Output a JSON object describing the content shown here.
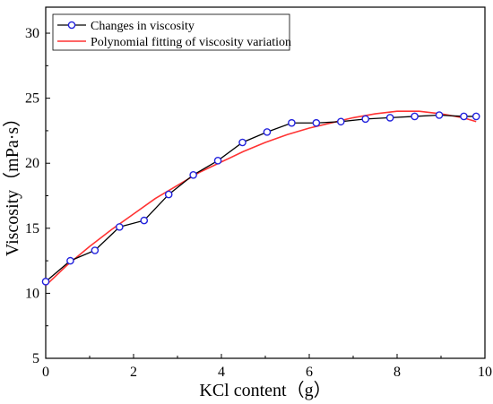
{
  "chart_data": {
    "type": "line",
    "xlabel": "KCl content（g）",
    "ylabel": "Viscosity（mPa·s）",
    "xlim": [
      0,
      10
    ],
    "ylim": [
      5,
      32
    ],
    "xticks": [
      0,
      2,
      4,
      6,
      8,
      10
    ],
    "yticks": [
      5,
      10,
      15,
      20,
      25,
      30
    ],
    "legend_position": "top-left",
    "grid": false,
    "series": [
      {
        "name": "Changes in viscosity",
        "kind": "line-marker",
        "color": "#000000",
        "marker_color": "#2222dd",
        "x": [
          0,
          0.56,
          1.12,
          1.68,
          2.24,
          2.8,
          3.36,
          3.92,
          4.48,
          5.04,
          5.6,
          6.16,
          6.72,
          7.28,
          7.84,
          8.4,
          8.96,
          9.52,
          9.8
        ],
        "y": [
          10.9,
          12.5,
          13.3,
          15.1,
          15.6,
          17.6,
          19.1,
          20.2,
          21.6,
          22.4,
          23.1,
          23.1,
          23.2,
          23.4,
          23.5,
          23.6,
          23.7,
          23.6,
          23.6
        ]
      },
      {
        "name": "Polynomial fitting of viscosity variation",
        "kind": "line",
        "color": "#ff3333",
        "x": [
          0,
          0.5,
          1,
          1.5,
          2,
          2.5,
          3,
          3.5,
          4,
          4.5,
          5,
          5.5,
          6,
          6.5,
          7,
          7.5,
          8,
          8.5,
          9,
          9.5,
          9.8
        ],
        "y": [
          10.6,
          12.2,
          13.6,
          14.9,
          16.1,
          17.3,
          18.3,
          19.3,
          20.1,
          20.9,
          21.6,
          22.2,
          22.7,
          23.1,
          23.5,
          23.8,
          24.0,
          24.0,
          23.8,
          23.5,
          23.2
        ]
      }
    ]
  }
}
